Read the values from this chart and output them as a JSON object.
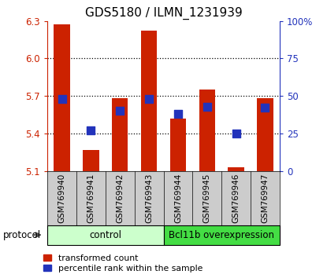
{
  "title": "GDS5180 / ILMN_1231939",
  "samples": [
    "GSM769940",
    "GSM769941",
    "GSM769942",
    "GSM769943",
    "GSM769944",
    "GSM769945",
    "GSM769946",
    "GSM769947"
  ],
  "red_values": [
    6.27,
    5.27,
    5.68,
    6.22,
    5.52,
    5.75,
    5.13,
    5.68
  ],
  "blue_values": [
    48,
    27,
    40,
    48,
    38,
    43,
    25,
    42
  ],
  "bar_bottom": 5.1,
  "ylim_left": [
    5.1,
    6.3
  ],
  "ylim_right": [
    0,
    100
  ],
  "yticks_left": [
    5.1,
    5.4,
    5.7,
    6.0,
    6.3
  ],
  "yticks_right": [
    0,
    25,
    50,
    75,
    100
  ],
  "red_color": "#cc2200",
  "blue_color": "#2233bb",
  "bar_width": 0.55,
  "blue_square_size": 45,
  "control_samples": 4,
  "control_label": "control",
  "treatment_label": "Bcl11b overexpression",
  "protocol_label": "protocol",
  "legend_red": "transformed count",
  "legend_blue": "percentile rank within the sample",
  "control_bg": "#ccffcc",
  "treatment_bg": "#44dd44",
  "sample_area_bg": "#cccccc",
  "title_fontsize": 11,
  "tick_fontsize": 8.5
}
